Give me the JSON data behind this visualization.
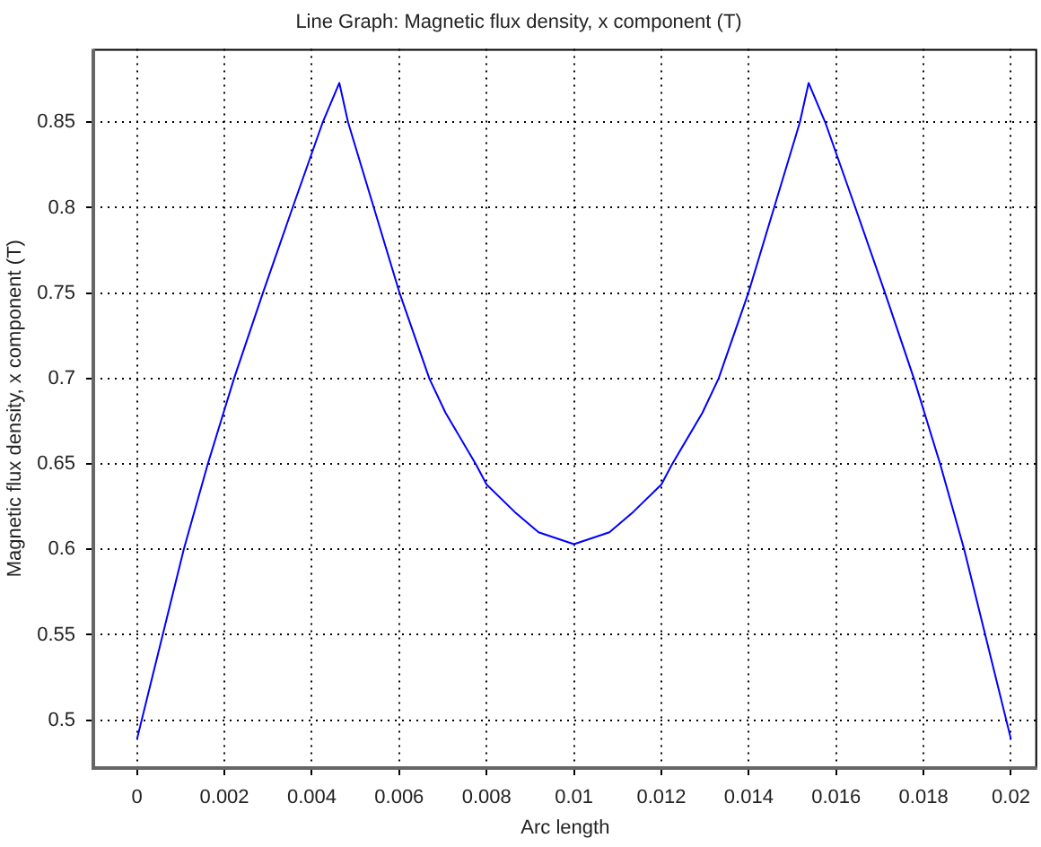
{
  "chart_data": {
    "type": "line",
    "title": "Line Graph: Magnetic flux density, x component (T)",
    "xlabel": "Arc length",
    "ylabel": "Magnetic flux density, x component (T)",
    "x": [
      0,
      0.00107,
      0.00162,
      0.00222,
      0.00288,
      0.00356,
      0.00425,
      0.00463,
      0.00483,
      0.00542,
      0.00601,
      0.00669,
      0.00706,
      0.00775,
      0.008,
      0.00864,
      0.00919,
      0.01,
      0.01081,
      0.01136,
      0.012,
      0.01225,
      0.01294,
      0.01331,
      0.01399,
      0.01458,
      0.01517,
      0.01537,
      0.01575,
      0.01644,
      0.01712,
      0.01778,
      0.01838,
      0.01893,
      0.02
    ],
    "series": [
      {
        "color": "#0000ff",
        "values": [
          0.489,
          0.6,
          0.65,
          0.7,
          0.75,
          0.8,
          0.85,
          0.873,
          0.85,
          0.8,
          0.75,
          0.7,
          0.68,
          0.65,
          0.638,
          0.622,
          0.61,
          0.603,
          0.61,
          0.622,
          0.638,
          0.65,
          0.68,
          0.7,
          0.75,
          0.8,
          0.85,
          0.873,
          0.85,
          0.8,
          0.75,
          0.7,
          0.65,
          0.6,
          0.489
        ]
      }
    ],
    "xlim": [
      -0.001,
      0.0206
    ],
    "xticks": [
      0,
      0.002,
      0.004,
      0.006,
      0.008,
      0.01,
      0.012,
      0.014,
      0.016,
      0.018,
      0.02
    ],
    "ylim": [
      0.472,
      0.893
    ],
    "yticks": [
      0.5,
      0.55,
      0.6,
      0.65,
      0.7,
      0.75,
      0.8,
      0.85
    ],
    "grid": true,
    "legend": false,
    "marker": "none",
    "line_style": "solid"
  }
}
